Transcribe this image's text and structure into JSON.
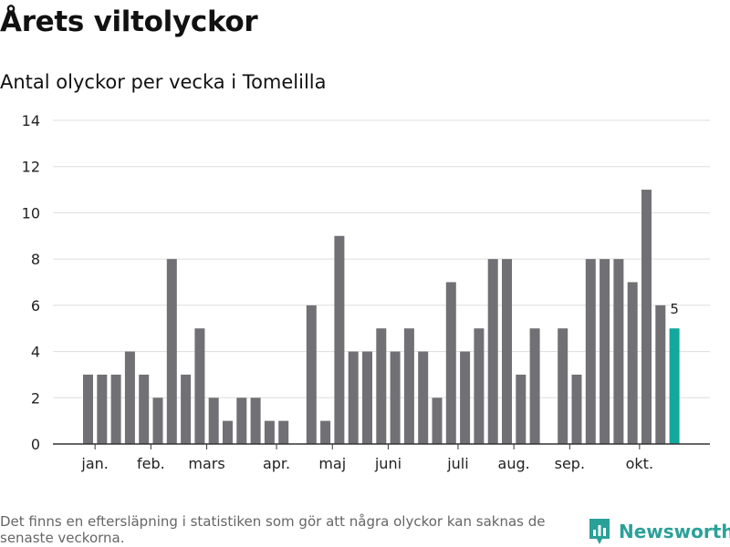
{
  "page": {
    "title": "Årets viltolyckor",
    "subtitle": "Antal olyckor per vecka i Tomelilla",
    "footnote": "Det finns en eftersläpning i statistiken som gör att några olyckor kan saknas de senaste veckorna.",
    "brand": "Newsworthy"
  },
  "colors": {
    "bar": "#717074",
    "highlight": "#13a89e",
    "grid": "#dddddd",
    "axis": "#333333",
    "text": "#222222",
    "brand": "#2aa198"
  },
  "chart_data": {
    "type": "bar",
    "title": "Årets viltolyckor",
    "subtitle": "Antal olyckor per vecka i Tomelilla",
    "xlabel": "",
    "ylabel": "",
    "ylim": [
      0,
      14
    ],
    "yticks": [
      0,
      2,
      4,
      6,
      8,
      10,
      12,
      14
    ],
    "grid": true,
    "legend": "none",
    "week_start": 1,
    "values": [
      3,
      3,
      3,
      4,
      3,
      2,
      8,
      3,
      5,
      2,
      1,
      2,
      2,
      1,
      1,
      null,
      6,
      1,
      9,
      4,
      4,
      5,
      4,
      5,
      4,
      2,
      7,
      4,
      5,
      8,
      8,
      3,
      5,
      null,
      5,
      3,
      8,
      8,
      8,
      7,
      11,
      6,
      5
    ],
    "highlight_index": 42,
    "highlight_label": "5",
    "month_labels": [
      {
        "label": "jan.",
        "index": 0.5
      },
      {
        "label": "feb.",
        "index": 4.5
      },
      {
        "label": "mars",
        "index": 8.5
      },
      {
        "label": "apr.",
        "index": 13.5
      },
      {
        "label": "maj",
        "index": 17.5
      },
      {
        "label": "juni",
        "index": 21.5
      },
      {
        "label": "juli",
        "index": 26.5
      },
      {
        "label": "aug.",
        "index": 30.5
      },
      {
        "label": "sep.",
        "index": 34.5
      },
      {
        "label": "okt.",
        "index": 39.5
      }
    ]
  }
}
